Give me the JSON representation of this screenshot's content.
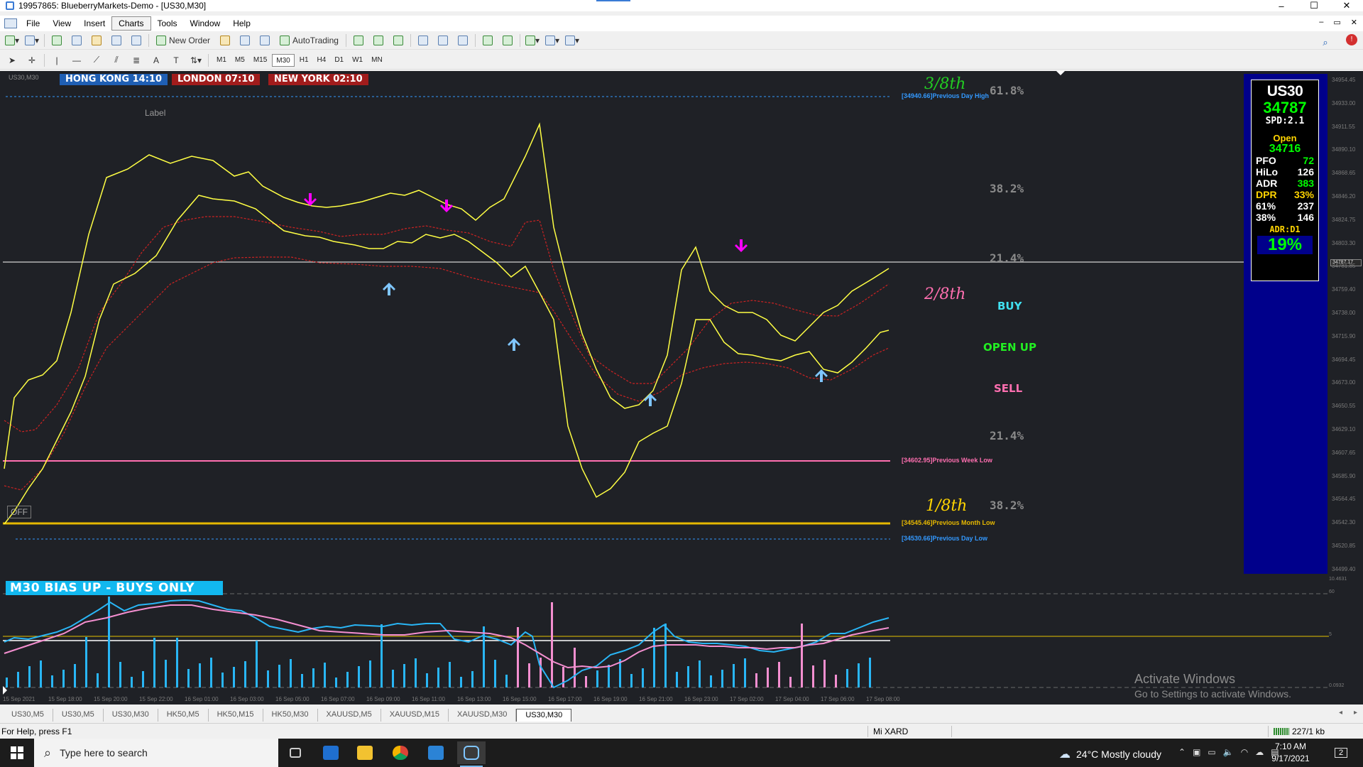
{
  "window": {
    "title": "19957865: BlueberryMarkets-Demo - [US30,M30]",
    "controls": [
      "–",
      "☐",
      "✕"
    ]
  },
  "menu": {
    "items": [
      "File",
      "View",
      "Insert",
      "Charts",
      "Tools",
      "Window",
      "Help"
    ],
    "active": "Charts",
    "mdi_controls": [
      "–",
      "▭",
      "✕"
    ]
  },
  "toolbar": {
    "new_order": "New Order",
    "autotrading": "AutoTrading",
    "timeframes": [
      "M1",
      "M5",
      "M15",
      "M30",
      "H1",
      "H4",
      "D1",
      "W1",
      "MN"
    ],
    "active_timeframe": "M30"
  },
  "chart": {
    "symbol_small": "US30,M30",
    "sessions": {
      "hong_kong": "HONG KONG 14:10",
      "london": "LONDON  07:10",
      "new_york": "NEW YORK  02:10"
    },
    "label_text": "Label",
    "off_button": "OFF",
    "fib_labels": [
      "61.8%",
      "38.2%",
      "21.4%",
      "21.4%",
      "38.2%"
    ],
    "eighths": {
      "three": "3/8th",
      "two": "2/8th",
      "one": "1/8th"
    },
    "signals": {
      "buy": "BUY",
      "open_up": "OPEN  UP",
      "sell": "SELL"
    },
    "levels": {
      "prev_day_high": "[34940.66]Previous Day High",
      "prev_week_low": "[34602.95]Previous Week Low",
      "prev_month_low": "[34545.46]Previous Month Low",
      "prev_day_low": "[34530.66]Previous Day Low"
    },
    "colors": {
      "background": "#1f2126",
      "price_line": "#ffff44",
      "ma_line": "#cc2222",
      "sell_arrow": "#ff00ff",
      "buy_arrow": "#7fc6ff",
      "week_low": "#ff6fb0",
      "month_low": "#e6b800",
      "day_level": "#3399ff",
      "eighth_green": "#22cc22",
      "eighth_pink": "#ff6fb0",
      "eighth_yellow": "#ffd400"
    }
  },
  "info_panel": {
    "symbol": "US30",
    "price": "34787",
    "spread": "SPD:2.1",
    "open_label": "Open",
    "open_value": "34716",
    "rows": [
      {
        "label": "PFO",
        "value": "72",
        "label_color": "#ffffff",
        "value_color": "#00ff00"
      },
      {
        "label": "HiLo",
        "value": "126",
        "label_color": "#ffffff",
        "value_color": "#ffffff"
      },
      {
        "label": "ADR",
        "value": "383",
        "label_color": "#ffffff",
        "value_color": "#00ff00"
      },
      {
        "label": "DPR",
        "value": "33%",
        "label_color": "#ffd400",
        "value_color": "#ffd400"
      },
      {
        "label": "61%",
        "value": "237",
        "label_color": "#ffffff",
        "value_color": "#ffffff"
      },
      {
        "label": "38%",
        "value": "146",
        "label_color": "#ffffff",
        "value_color": "#ffffff"
      }
    ],
    "adr_tf": "ADR:D1",
    "percent": "19%"
  },
  "price_axis": {
    "ticks": [
      "34954.45",
      "34933.00",
      "34911.55",
      "34890.10",
      "34868.65",
      "34846.20",
      "34824.75",
      "34803.30",
      "34781.85",
      "34759.40",
      "34738.00",
      "34715.90",
      "34694.45",
      "34673.00",
      "34650.55",
      "34629.10",
      "34607.65",
      "34585.90",
      "34564.45",
      "34542.30",
      "34520.85",
      "34499.40"
    ],
    "current": "34787.17"
  },
  "oscillator": {
    "banner": "M30  BIAS UP - BUYS ONLY",
    "scale_top": "10.4631",
    "scale_mid": "5",
    "scale_bottom": "0.0932",
    "scale_60": "60"
  },
  "time_axis": [
    "15 Sep 2021",
    "15 Sep 18:00",
    "15 Sep 20:00",
    "15 Sep 22:00",
    "16 Sep 01:00",
    "16 Sep 03:00",
    "16 Sep 05:00",
    "16 Sep 07:00",
    "16 Sep 09:00",
    "16 Sep 11:00",
    "16 Sep 13:00",
    "16 Sep 15:00",
    "16 Sep 17:00",
    "16 Sep 19:00",
    "16 Sep 21:00",
    "16 Sep 23:00",
    "17 Sep 02:00",
    "17 Sep 04:00",
    "17 Sep 06:00",
    "17 Sep 08:00"
  ],
  "watermark": {
    "line1": "Activate Windows",
    "line2": "Go to Settings to activate Windows."
  },
  "tabs": [
    "US30,M5",
    "US30,M5",
    "US30,M30",
    "HK50,M5",
    "HK50,M15",
    "HK50,M30",
    "XAUUSD,M5",
    "XAUUSD,M15",
    "XAUUSD,M30",
    "US30,M30"
  ],
  "active_tab_index": 9,
  "statusbar": {
    "help": "For Help, press F1",
    "profile": "Mi XARD",
    "connection": "227/1 kb"
  },
  "taskbar": {
    "search_placeholder": "Type here to search",
    "weather": "24°C  Mostly cloudy",
    "time": "7:10 AM",
    "date": "9/17/2021",
    "notifications": "2"
  }
}
